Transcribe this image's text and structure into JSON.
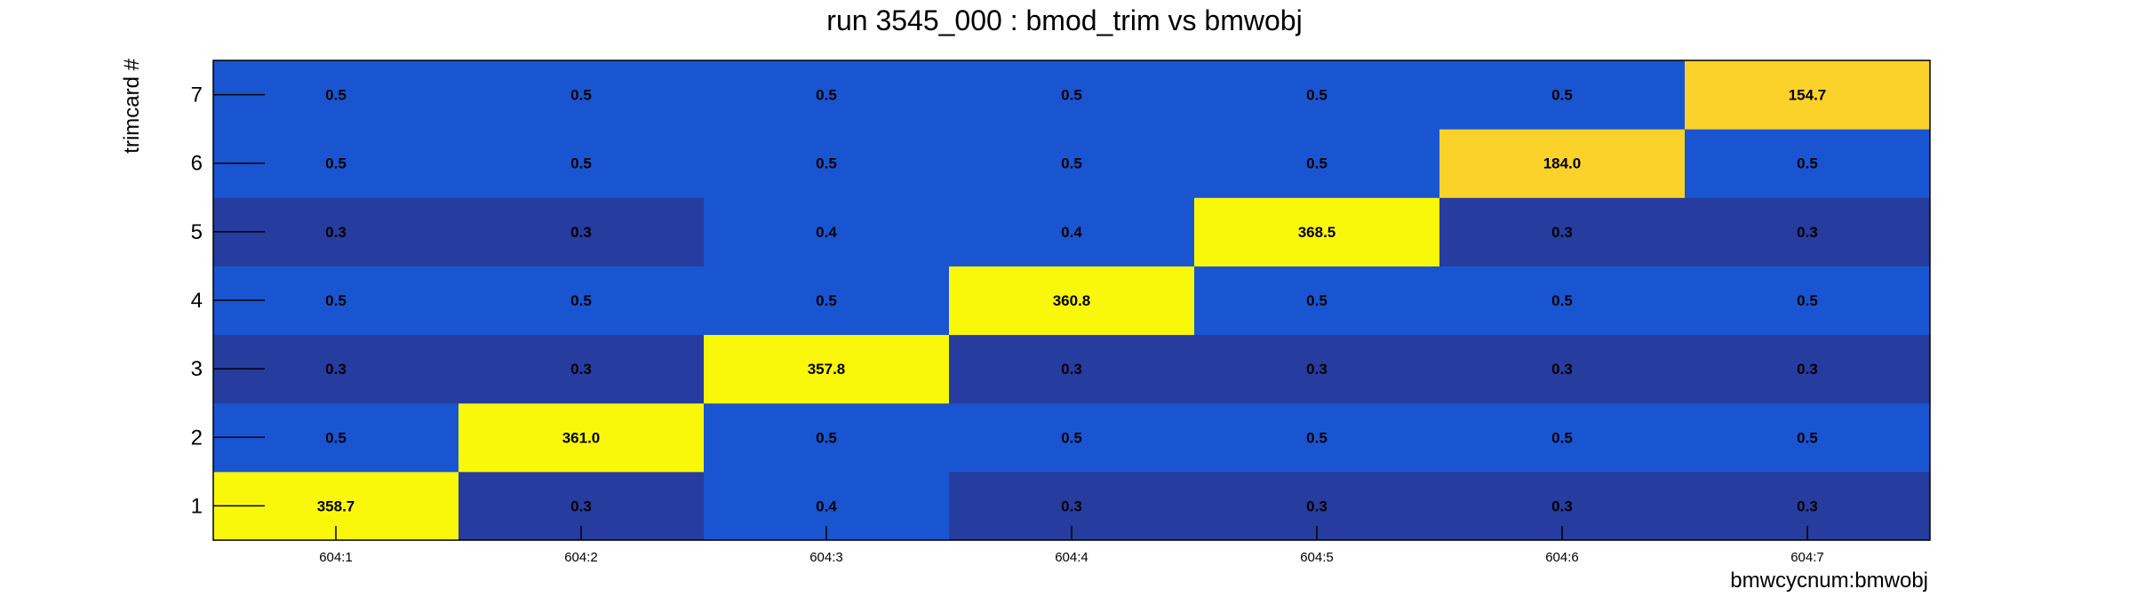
{
  "chart_data": {
    "type": "heatmap",
    "title": "run 3545_000 : bmod_trim vs bmwobj",
    "xlabel": "bmwcycnum:bmwobj",
    "ylabel": "trimcard #",
    "x_categories": [
      "604:1",
      "604:2",
      "604:3",
      "604:4",
      "604:5",
      "604:6",
      "604:7"
    ],
    "y_categories": [
      "1",
      "2",
      "3",
      "4",
      "5",
      "6",
      "7"
    ],
    "values": [
      [
        358.7,
        0.3,
        0.4,
        0.3,
        0.3,
        0.3,
        0.3
      ],
      [
        0.5,
        361.0,
        0.5,
        0.5,
        0.5,
        0.5,
        0.5
      ],
      [
        0.3,
        0.3,
        357.8,
        0.3,
        0.3,
        0.3,
        0.3
      ],
      [
        0.5,
        0.5,
        0.5,
        360.8,
        0.5,
        0.5,
        0.5
      ],
      [
        0.3,
        0.3,
        0.4,
        0.4,
        368.5,
        0.3,
        0.3
      ],
      [
        0.5,
        0.5,
        0.5,
        0.5,
        0.5,
        184.0,
        0.5
      ],
      [
        0.5,
        0.5,
        0.5,
        0.5,
        0.5,
        0.5,
        154.7
      ]
    ],
    "value_format_decimals": 1,
    "colormap": "palette-dark-blue-to-yellow",
    "colors": {
      "low": "#263c9e",
      "mid": "#1a55d1",
      "high_mid": "#fbd22a",
      "high": "#f9f80a"
    },
    "grid": false,
    "legend": "none"
  }
}
